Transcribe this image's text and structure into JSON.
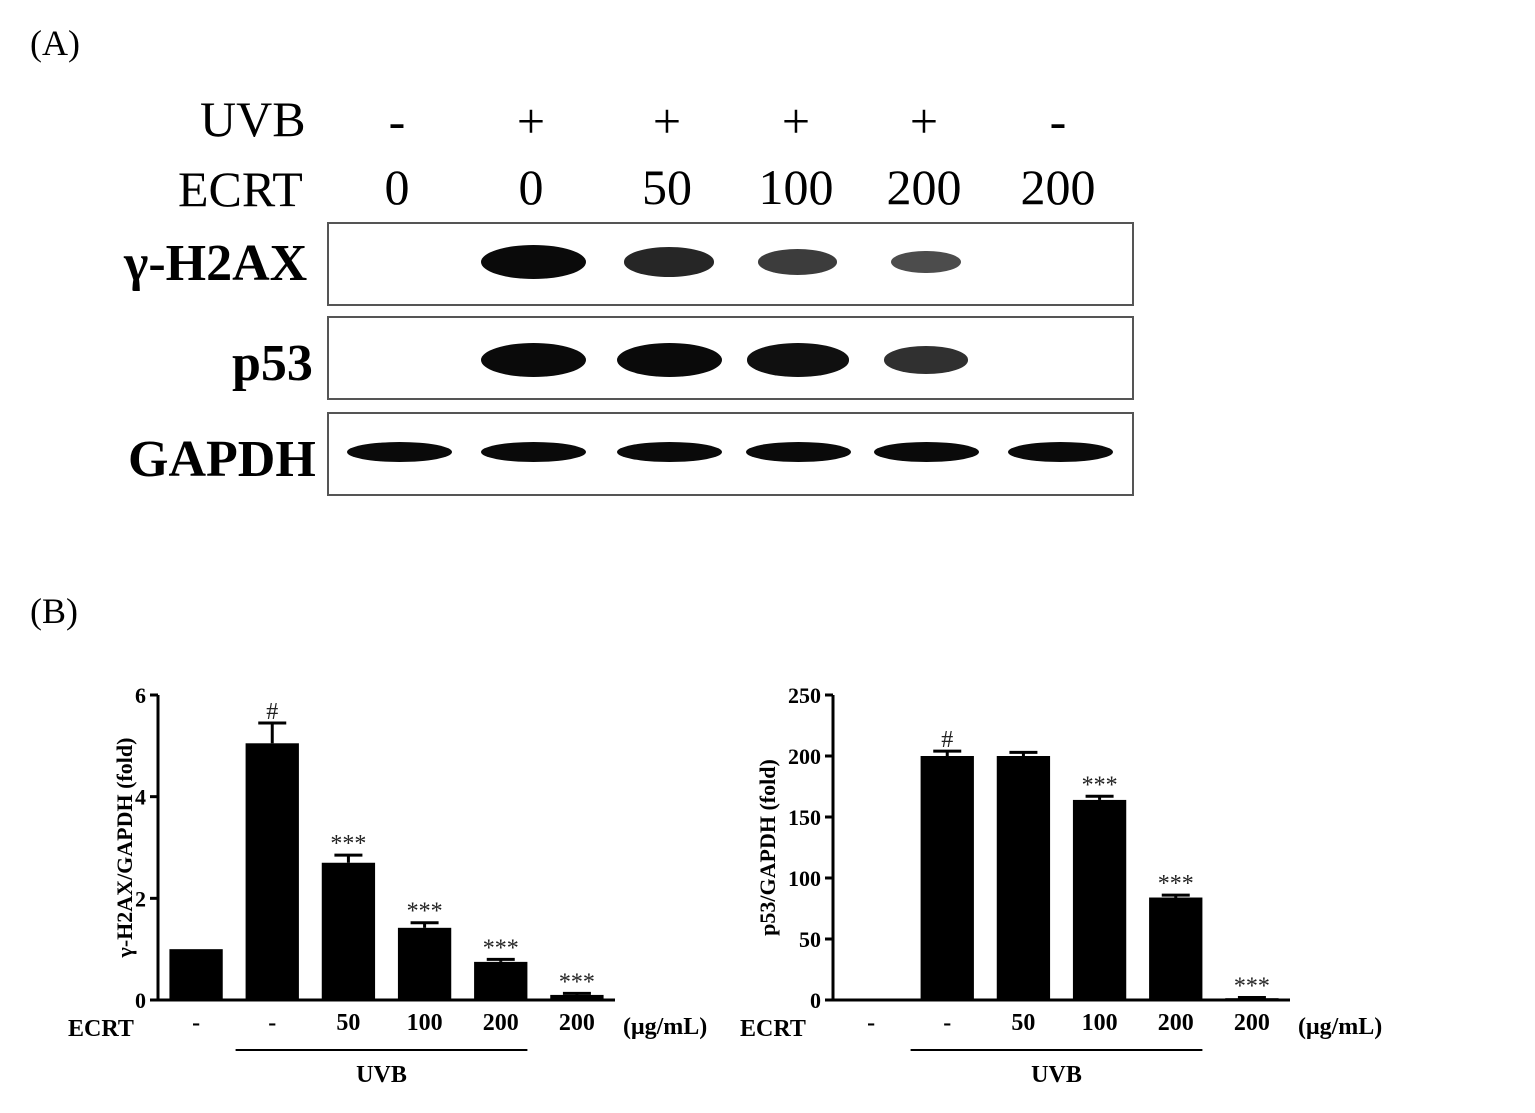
{
  "panelA": {
    "label": "(A)",
    "uvb_label": "UVB",
    "ecrt_label": "ECRT",
    "uvb_signs": [
      "-",
      "+",
      "+",
      "+",
      "+",
      "-"
    ],
    "ecrt_values": [
      "0",
      "0",
      "50",
      "100",
      "200",
      "200"
    ],
    "blots": [
      {
        "name": "γ-H2AX",
        "band_intensity": [
          0,
          1.0,
          0.75,
          0.55,
          0.4,
          0
        ]
      },
      {
        "name": "p53",
        "band_intensity": [
          0,
          1.0,
          1.0,
          0.95,
          0.65,
          0
        ]
      },
      {
        "name": "GAPDH",
        "band_intensity": [
          1,
          1,
          1,
          1,
          1,
          1
        ]
      }
    ]
  },
  "panelB": {
    "label": "(B)"
  },
  "chart_data": [
    {
      "type": "bar",
      "ylabel": "γ-H2AX/GAPDH (fold)",
      "ylim": [
        0,
        6
      ],
      "yticks": [
        "0",
        "2",
        "4",
        "6"
      ],
      "x_prefix": "ECRT",
      "categories": [
        "-",
        "-",
        "50",
        "100",
        "200",
        "200"
      ],
      "unit": "(μg/mL)",
      "group_label": "UVB",
      "values": [
        1.0,
        5.05,
        2.7,
        1.42,
        0.75,
        0.1
      ],
      "errors": [
        0,
        0.4,
        0.15,
        0.1,
        0.05,
        0.03
      ],
      "annotations": [
        "",
        "#",
        "***",
        "***",
        "***",
        "***"
      ],
      "bar_color": "#000000"
    },
    {
      "type": "bar",
      "ylabel": "p53/GAPDH (fold)",
      "ylim": [
        0,
        250
      ],
      "yticks": [
        "0",
        "50",
        "100",
        "150",
        "200",
        "250"
      ],
      "x_prefix": "ECRT",
      "categories": [
        "-",
        "-",
        "50",
        "100",
        "200",
        "200"
      ],
      "unit": "(μg/mL)",
      "group_label": "UVB",
      "values": [
        1,
        200,
        200,
        164,
        84,
        1.5
      ],
      "errors": [
        0,
        4,
        3,
        3,
        2,
        0.5
      ],
      "annotations": [
        "",
        "#",
        "",
        "***",
        "***",
        "***"
      ],
      "bar_color": "#000000"
    }
  ]
}
